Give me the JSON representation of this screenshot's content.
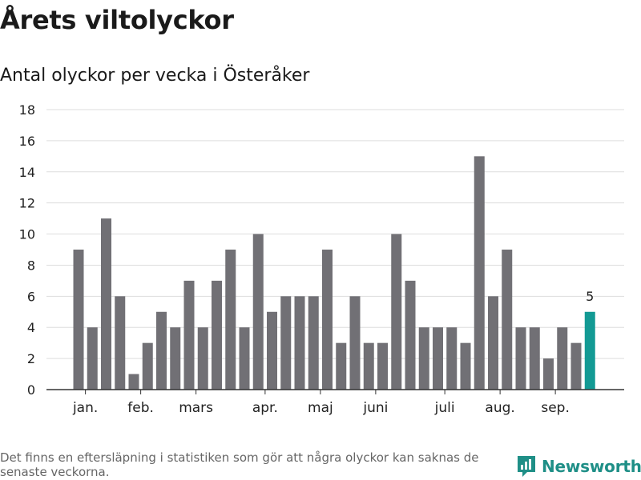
{
  "title": "Årets viltolyckor",
  "subtitle": "Antal olyckor per vecka i Österåker",
  "footnote": "Det finns en eftersläpning i statistiken som gör att några olyckor kan saknas de senaste veckorna.",
  "brand": {
    "name": "Newsworthy",
    "icon": "newsworthy-logo-icon",
    "color": "#1f8f87"
  },
  "colors": {
    "bar": "#717075",
    "highlight": "#139a94",
    "grid": "#dddddd",
    "axis": "#333333"
  },
  "chart_data": {
    "type": "bar",
    "title": "Antal olyckor per vecka i Österåker",
    "xlabel": "",
    "ylabel": "",
    "ylim": [
      0,
      18
    ],
    "yticks": [
      0,
      2,
      4,
      6,
      8,
      10,
      12,
      14,
      16,
      18
    ],
    "grid": true,
    "values": [
      9,
      4,
      11,
      6,
      1,
      3,
      5,
      4,
      7,
      4,
      7,
      9,
      4,
      10,
      5,
      6,
      6,
      6,
      9,
      3,
      6,
      3,
      3,
      10,
      7,
      4,
      4,
      4,
      3,
      15,
      6,
      9,
      4,
      4,
      2,
      4,
      3,
      5
    ],
    "highlight_index": 37,
    "highlight_label": "5",
    "month_labels": [
      {
        "label": "jan.",
        "at": 0.5
      },
      {
        "label": "feb.",
        "at": 4.5
      },
      {
        "label": "mars",
        "at": 8.5
      },
      {
        "label": "apr.",
        "at": 13.5
      },
      {
        "label": "maj",
        "at": 17.5
      },
      {
        "label": "juni",
        "at": 21.5
      },
      {
        "label": "juli",
        "at": 26.5
      },
      {
        "label": "aug.",
        "at": 30.5
      },
      {
        "label": "sep.",
        "at": 34.5
      }
    ]
  }
}
